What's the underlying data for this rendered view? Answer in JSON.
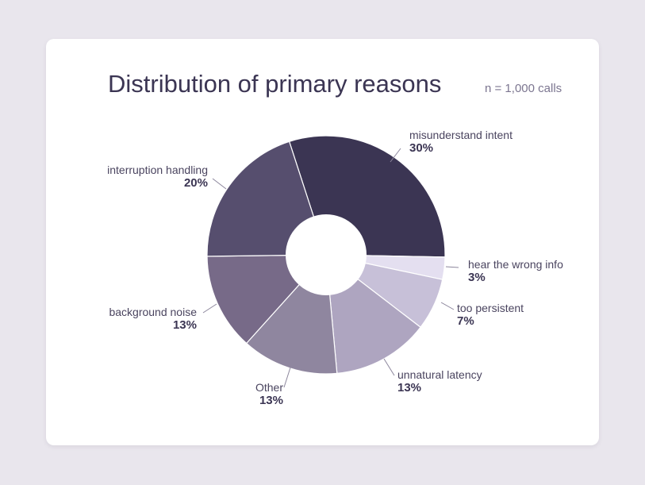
{
  "title": "Distribution of primary reasons",
  "subtitle": "n = 1,000 calls",
  "chart_data": {
    "type": "pie",
    "title": "Distribution of primary reasons",
    "subtitle": "n = 1,000 calls",
    "donut": true,
    "slices": [
      {
        "label": "misunderstand intent",
        "value": 30,
        "pct_label": "30%",
        "color": "#3b3553"
      },
      {
        "label": "hear the wrong info",
        "value": 3,
        "pct_label": "3%",
        "color": "#e4dff0"
      },
      {
        "label": "too persistent",
        "value": 7,
        "pct_label": "7%",
        "color": "#c7c0d8"
      },
      {
        "label": "unnatural latency",
        "value": 13,
        "pct_label": "13%",
        "color": "#aea5c0"
      },
      {
        "label": "Other",
        "value": 13,
        "pct_label": "13%",
        "color": "#8f869f"
      },
      {
        "label": "background noise",
        "value": 13,
        "pct_label": "13%",
        "color": "#776a88"
      },
      {
        "label": "interruption handling",
        "value": 20,
        "pct_label": "20%",
        "color": "#564e6e"
      }
    ]
  }
}
